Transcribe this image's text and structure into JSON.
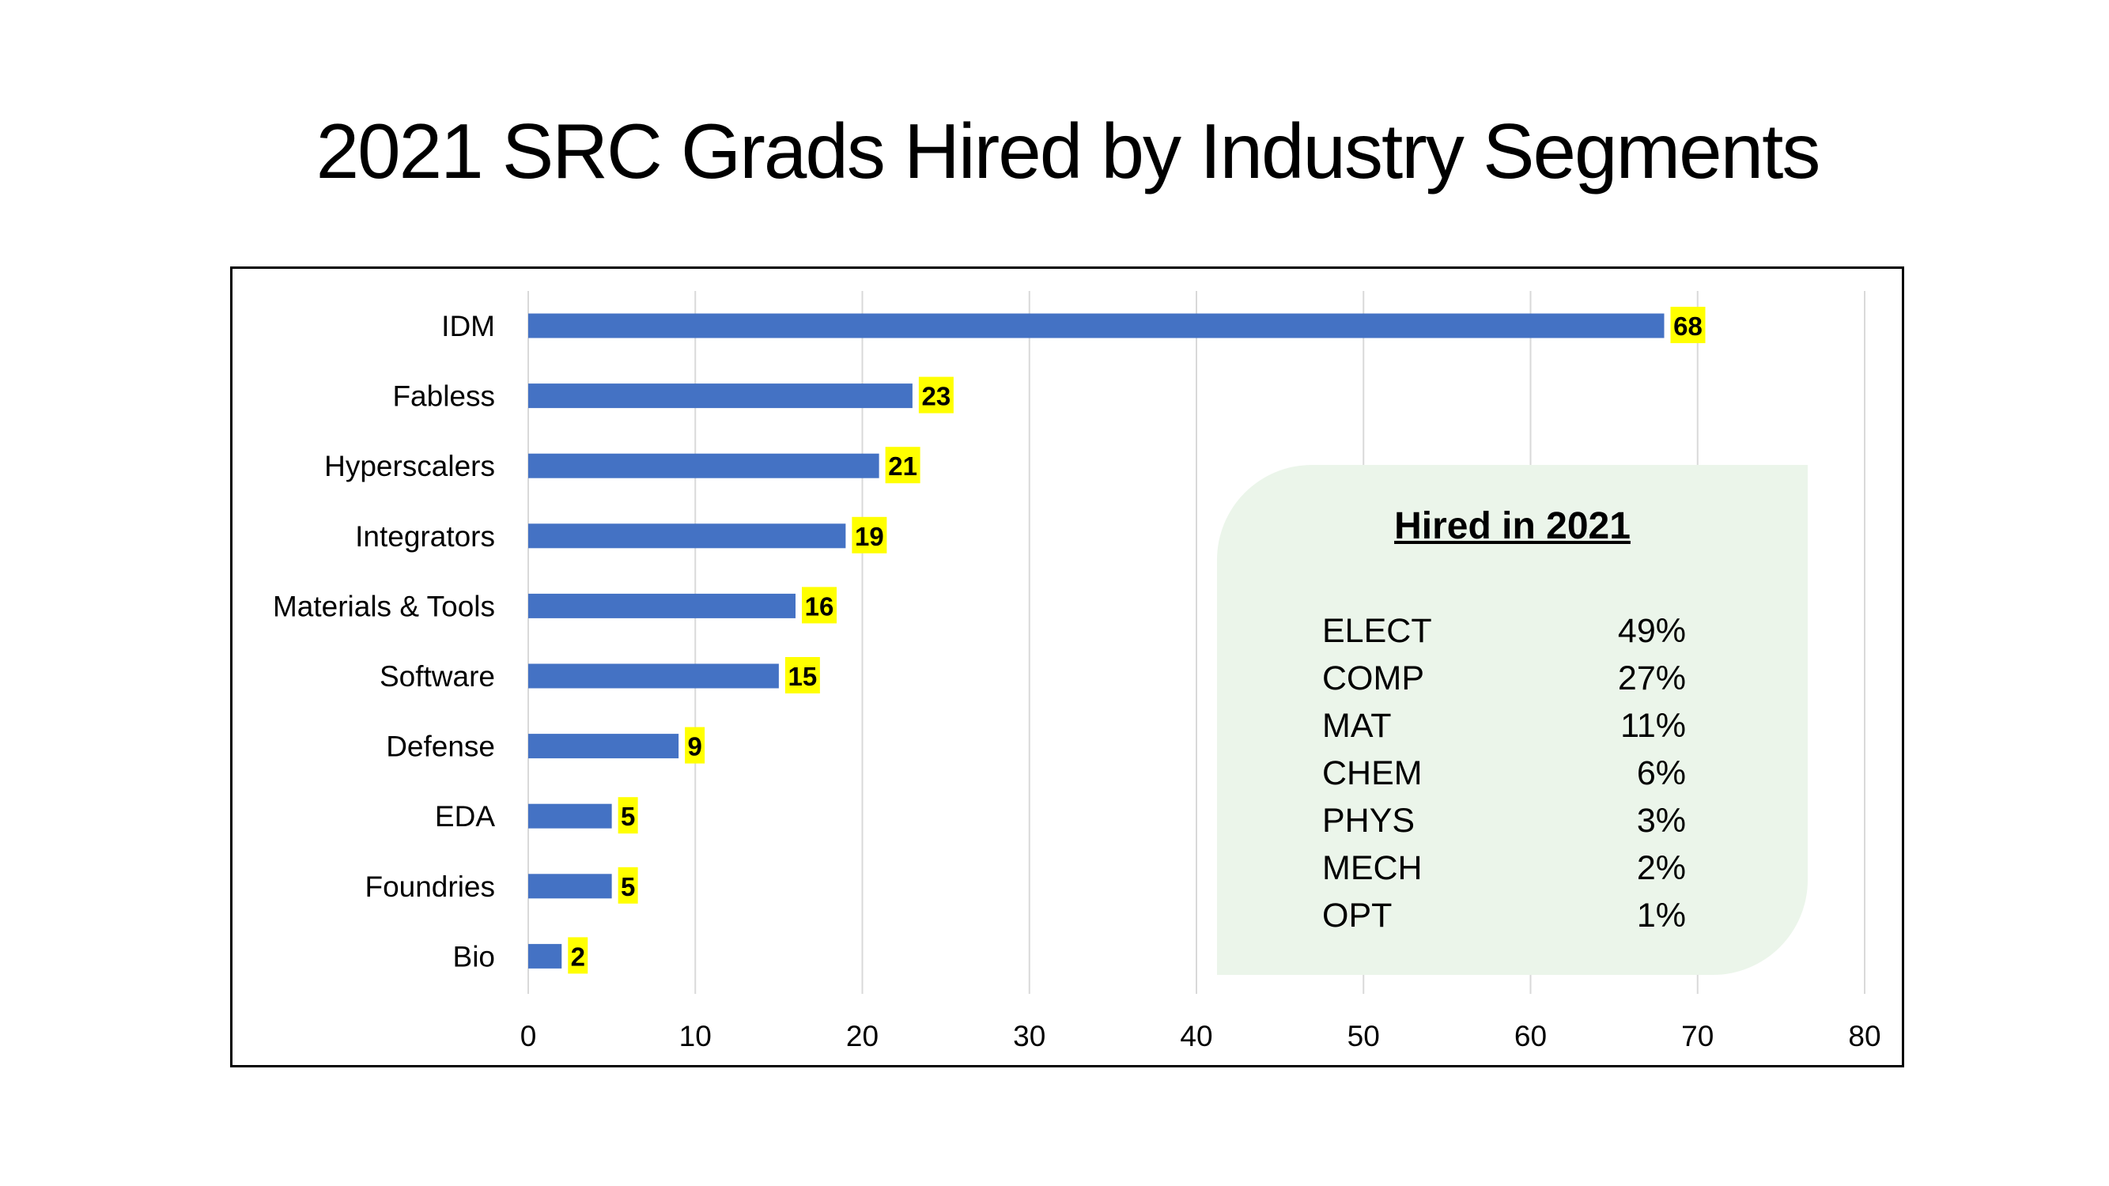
{
  "chart_data": {
    "type": "bar",
    "orientation": "horizontal",
    "title": "2021 SRC Grads Hired by Industry Segments",
    "categories": [
      "IDM",
      "Fabless",
      "Hyperscalers",
      "Integrators",
      "Materials & Tools",
      "Software",
      "Defense",
      "EDA",
      "Foundries",
      "Bio"
    ],
    "values": [
      68,
      23,
      21,
      19,
      16,
      15,
      9,
      5,
      5,
      2
    ],
    "xlim": [
      0,
      80
    ],
    "xticks": [
      0,
      10,
      20,
      30,
      40,
      50,
      60,
      70,
      80
    ],
    "grid": "vertical",
    "xlabel": "",
    "ylabel": "",
    "colors": {
      "bar": "#4472c4",
      "data_label_bg": "#ffff00",
      "grid": "#d9d9d9"
    }
  },
  "panel": {
    "title": "Hired in 2021",
    "background": "#ebf5ea",
    "rows": [
      {
        "label": "ELECT",
        "value": "49%"
      },
      {
        "label": "COMP",
        "value": "27%"
      },
      {
        "label": "MAT",
        "value": "11%"
      },
      {
        "label": "CHEM",
        "value": "6%"
      },
      {
        "label": "PHYS",
        "value": "3%"
      },
      {
        "label": "MECH",
        "value": "2%"
      },
      {
        "label": "OPT",
        "value": "1%"
      }
    ]
  }
}
